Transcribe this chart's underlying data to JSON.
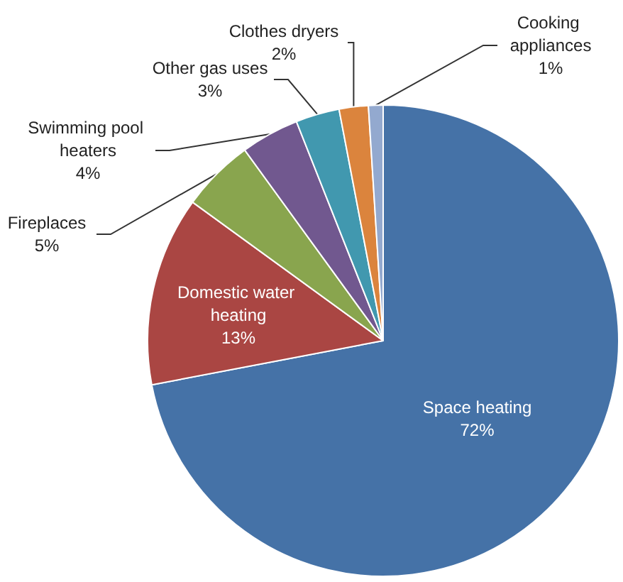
{
  "chart_data": {
    "type": "pie",
    "categories": [
      "Space heating",
      "Domestic water heating",
      "Fireplaces",
      "Swimming pool heaters",
      "Other gas uses",
      "Clothes dryers",
      "Cooking appliances"
    ],
    "values": [
      72,
      13,
      5,
      4,
      3,
      2,
      1
    ],
    "colors": [
      "#4572a7",
      "#aa4643",
      "#89a54e",
      "#71588f",
      "#4198af",
      "#db843d",
      "#93a9cf"
    ],
    "value_labels": [
      "72%",
      "13%",
      "5%",
      "4%",
      "3%",
      "2%",
      "1%"
    ],
    "legend": false
  }
}
